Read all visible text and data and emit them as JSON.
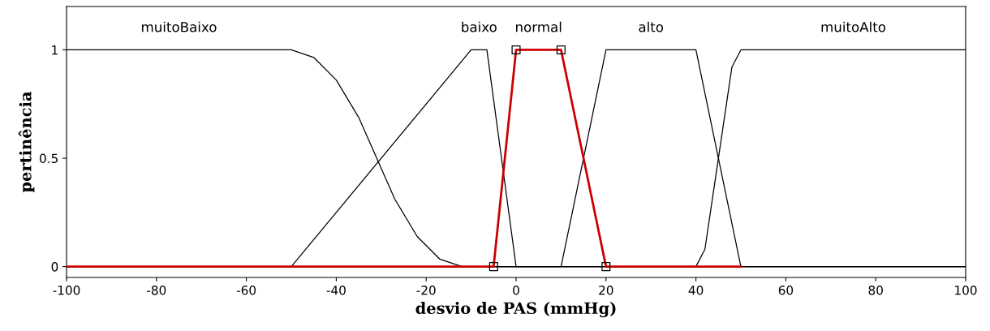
{
  "chart_data": {
    "type": "line",
    "xlabel": "desvio de PAS (mmHg)",
    "ylabel": "pertinência",
    "xlim": [
      -100,
      100
    ],
    "xticks": [
      -100,
      -80,
      -60,
      -40,
      -20,
      0,
      20,
      40,
      60,
      80,
      100
    ],
    "ylim": [
      -0.05,
      1.2
    ],
    "yticks": [
      0,
      0.5,
      1
    ],
    "grid": false,
    "legend": false,
    "marker": "none",
    "line_style": "solid",
    "series": [
      {
        "name": "muitoBaixo",
        "color": "#000000",
        "x": [
          -100,
          -50,
          -45,
          -40,
          -35,
          -31,
          -27,
          -22,
          -17,
          -12,
          100
        ],
        "values": [
          1,
          1,
          0.965,
          0.861,
          0.688,
          0.5,
          0.312,
          0.139,
          0.035,
          0,
          0
        ]
      },
      {
        "name": "baixo",
        "color": "#000000",
        "x": [
          -100,
          -50,
          -10,
          -6.5,
          0,
          100
        ],
        "values": [
          0,
          0,
          1,
          1,
          0,
          0
        ]
      },
      {
        "name": "alto",
        "color": "#000000",
        "x": [
          -100,
          10,
          20,
          40,
          50,
          100
        ],
        "values": [
          0,
          0,
          1,
          1,
          0,
          0
        ]
      },
      {
        "name": "muitoAlto",
        "color": "#000000",
        "x": [
          -100,
          40,
          42,
          45,
          48,
          50,
          100
        ],
        "values": [
          0,
          0,
          0.08,
          0.5,
          0.92,
          1,
          1
        ]
      },
      {
        "name": "normal",
        "color": "#cc0000",
        "x": [
          -100,
          -5,
          0,
          10,
          20,
          50
        ],
        "values": [
          0,
          0,
          1,
          1,
          0,
          0
        ]
      },
      {
        "type": "scatter",
        "marker": "square",
        "color": "#000000",
        "x": [
          -5,
          0,
          10,
          20
        ],
        "values": [
          0,
          1,
          1,
          0
        ]
      }
    ]
  }
}
